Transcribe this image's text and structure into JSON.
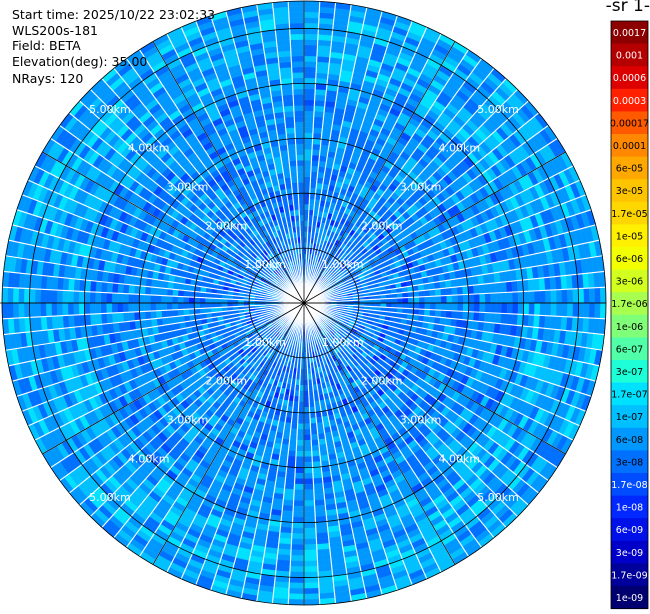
{
  "header": {
    "start_time": "Start time: 2025/10/22 23:02:33",
    "instrument": "WLS200s-181",
    "field": "Field: BETA",
    "elevation": "Elevation(deg): 35.00",
    "nrays": "NRays: 120"
  },
  "colorbar": {
    "title": "-1 sr-",
    "labels": [
      "0.0017",
      "0.001",
      "0.0006",
      "0.0003",
      "0.00017",
      "0.0001",
      "6e-05",
      "3e-05",
      "1.7e-05",
      "1e-05",
      "6e-06",
      "3e-06",
      "1.7e-06",
      "1e-06",
      "6e-07",
      "3e-07",
      "1.7e-07",
      "1e-07",
      "6e-08",
      "3e-08",
      "1.7e-08",
      "1e-08",
      "6e-09",
      "3e-09",
      "1.7e-09",
      "1e-09"
    ],
    "colors": [
      "#8c0000",
      "#b40000",
      "#dc0000",
      "#ff2000",
      "#ff5a00",
      "#ff8800",
      "#ffa800",
      "#ffc400",
      "#ffd700",
      "#ffef00",
      "#f3ff00",
      "#d2ff20",
      "#a8ff50",
      "#80ff78",
      "#50ffa8",
      "#1effd8",
      "#00e0ff",
      "#00c0ff",
      "#0098ff",
      "#0070ff",
      "#004cff",
      "#0028ff",
      "#0010e8",
      "#0000c8",
      "#00009a",
      "#000070"
    ],
    "label_colors": [
      "#ffffff",
      "#ffffff",
      "#ffffff",
      "#ffffff",
      "#000000",
      "#000000",
      "#000000",
      "#000000",
      "#000000",
      "#000000",
      "#000000",
      "#000000",
      "#000000",
      "#000000",
      "#000000",
      "#000000",
      "#000000",
      "#000000",
      "#000000",
      "#000000",
      "#ffffff",
      "#ffffff",
      "#ffffff",
      "#ffffff",
      "#ffffff",
      "#ffffff"
    ]
  },
  "chart_data": {
    "type": "heatmap",
    "projection": "polar-ppi",
    "nrays": 120,
    "azimuth_range_deg": [
      0,
      360
    ],
    "max_range_km": 5.5,
    "range_rings": [
      {
        "range_km": 1.0,
        "label": "1.00km"
      },
      {
        "range_km": 2.0,
        "label": "2.00km"
      },
      {
        "range_km": 3.0,
        "label": "3.00km"
      },
      {
        "range_km": 4.0,
        "label": "4.00km"
      },
      {
        "range_km": 5.0,
        "label": "5.00km"
      }
    ],
    "ring_label_bearings_deg": [
      315,
      45,
      135,
      225
    ],
    "spoke_bearings_deg": [
      0,
      30,
      60,
      90,
      120,
      150,
      180,
      210,
      240,
      270,
      300,
      330
    ],
    "field": "BETA",
    "dominant_value_range": [
      6e-08,
      3e-07
    ],
    "near_field_values": [
      "3e-08",
      "1e-08"
    ]
  }
}
